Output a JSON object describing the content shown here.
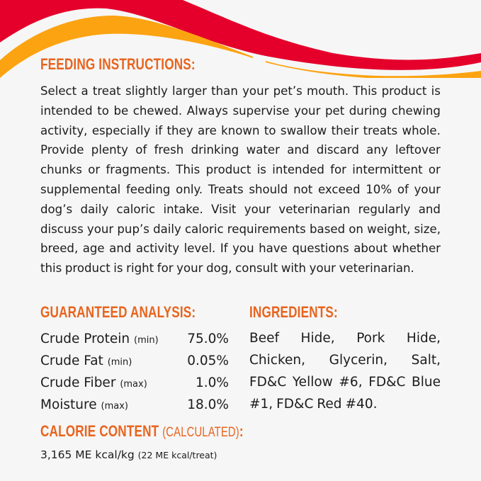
{
  "colors": {
    "red": "#e4002b",
    "orange": "#fca311",
    "heading": "#e8641e",
    "background": "#f6f6f6"
  },
  "feeding": {
    "title": "FEEDING INSTRUCTIONS:",
    "lines": [
      "Select a treat slightly larger than your pet’s mouth. This product is",
      "intended to be chewed. Always supervise your pet during chewing",
      "activity, especially if they are known to swallow their treats whole.",
      "Provide plenty of fresh drinking water and discard any leftover",
      "chunks or fragments. This product is intended for intermittent or",
      "supplemental feeding only. Treats should not exceed 10% of your",
      "dog’s daily caloric intake. Visit your veterinarian regularly and",
      "discuss your pup’s daily caloric requirements based on weight, size,",
      "breed, age and activity level. If you have questions about whether",
      "this product is right for your dog, consult with your veterinarian."
    ]
  },
  "analysis": {
    "title": "GUARANTEED ANALYSIS:",
    "rows": [
      {
        "name": "Crude Protein",
        "qual": "(min)",
        "value": "75.0%"
      },
      {
        "name": "Crude Fat",
        "qual": "(min)",
        "value": "0.05%"
      },
      {
        "name": "Crude Fiber",
        "qual": "(max)",
        "value": "1.0%"
      },
      {
        "name": "Moisture",
        "qual": "(max)",
        "value": "18.0%"
      }
    ]
  },
  "ingredients": {
    "title": "INGREDIENTS:",
    "lines": [
      "Beef Hide, Pork Hide,",
      "Chicken, Glycerin, Salt,",
      "FD&C Yellow #6, FD&C Blue",
      "#1, FD&C Red #40."
    ]
  },
  "calorie": {
    "title": "CALORIE CONTENT",
    "subtitle": "(CALCULATED)",
    "colon": ":",
    "value": "3,165 ME kcal/kg",
    "per_treat": "(22 ME kcal/treat)"
  }
}
